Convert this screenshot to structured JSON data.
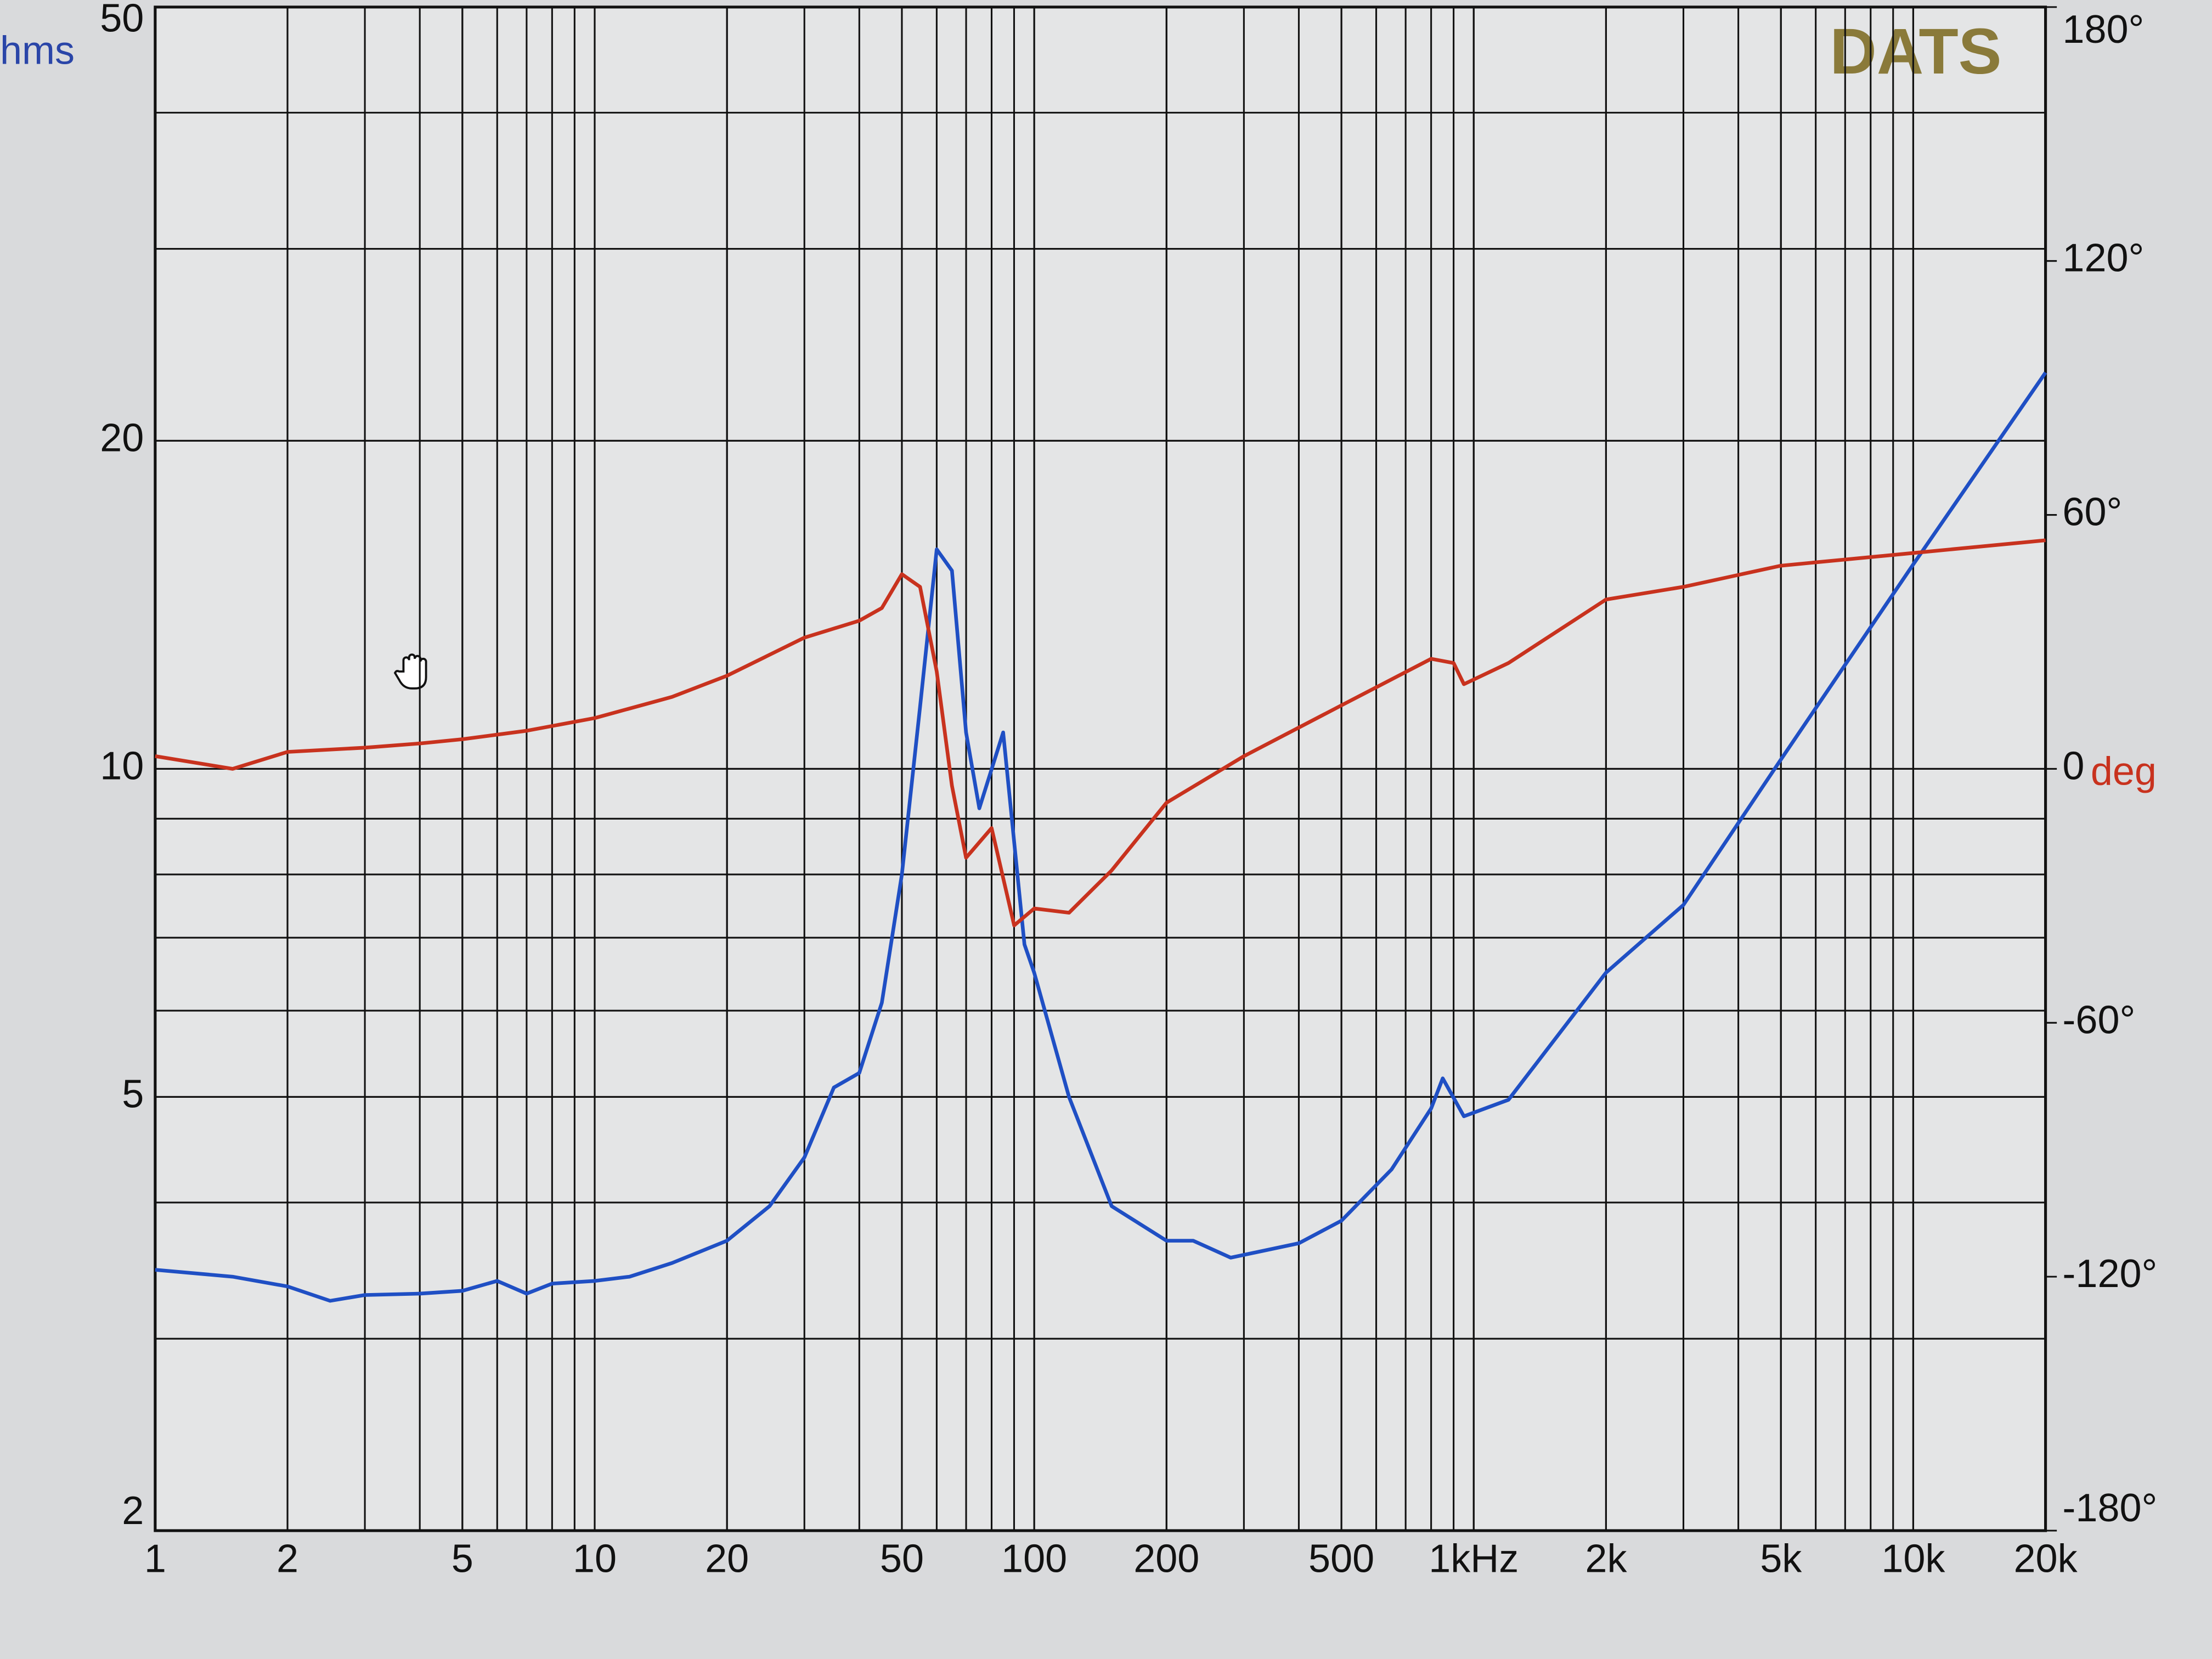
{
  "chart_data": {
    "type": "line",
    "watermark": "DATS",
    "ylabel": "hms",
    "y2label": "deg",
    "xscale": "log",
    "yscale": "log",
    "grid": true,
    "minor_grid": true,
    "xlim": [
      1,
      20000
    ],
    "ylim": [
      2,
      50
    ],
    "y2lim": [
      -180,
      180
    ],
    "xticks": [
      1,
      2,
      5,
      10,
      20,
      50,
      100,
      200,
      500,
      {
        "value": 1000,
        "label": "1kHz"
      },
      {
        "value": 2000,
        "label": "2k"
      },
      {
        "value": 5000,
        "label": "5k"
      },
      {
        "value": 10000,
        "label": "10k"
      },
      {
        "value": 20000,
        "label": "20k"
      }
    ],
    "yticks": [
      2,
      5,
      10,
      20,
      50
    ],
    "y2ticks": [
      {
        "value": 180,
        "label": "180°"
      },
      {
        "value": 120,
        "label": "120°"
      },
      {
        "value": 60,
        "label": "60°"
      },
      0,
      {
        "value": -60,
        "label": "-60°"
      },
      {
        "value": -120,
        "label": "-120°"
      },
      {
        "value": -180,
        "label": "-180°"
      }
    ],
    "series": [
      {
        "color": "#1f4fc4",
        "x": [
          1,
          1.5,
          2,
          2.5,
          3,
          4,
          5,
          6,
          7,
          8,
          10,
          12,
          15,
          20,
          25,
          30,
          35,
          40,
          45,
          50,
          55,
          60,
          65,
          70,
          75,
          85,
          95,
          100,
          120,
          150,
          200,
          230,
          280,
          400,
          500,
          650,
          800,
          850,
          950,
          1200,
          2000,
          3000,
          5000,
          10000,
          20000
        ],
        "values": [
          3.47,
          3.42,
          3.35,
          3.25,
          3.29,
          3.3,
          3.32,
          3.39,
          3.3,
          3.37,
          3.39,
          3.42,
          3.52,
          3.69,
          3.97,
          4.4,
          5.1,
          5.26,
          6.1,
          8.0,
          11.4,
          15.9,
          15.2,
          10.8,
          9.2,
          10.8,
          6.9,
          6.5,
          5.0,
          3.97,
          3.69,
          3.69,
          3.56,
          3.67,
          3.85,
          4.29,
          4.88,
          5.2,
          4.8,
          4.97,
          6.5,
          7.5,
          10.2,
          15.4,
          23.1
        ]
      },
      {
        "color": "#c8321e",
        "axis": "y2",
        "x": [
          1,
          1.5,
          2,
          3,
          4,
          5,
          7,
          10,
          15,
          20,
          30,
          40,
          45,
          50,
          55,
          60,
          65,
          70,
          80,
          90,
          100,
          120,
          150,
          200,
          300,
          500,
          800,
          900,
          950,
          1200,
          2000,
          3000,
          5000,
          10000,
          20000
        ],
        "values": [
          3,
          0,
          4,
          5,
          6,
          7,
          9,
          12,
          17,
          22,
          31,
          35,
          38,
          46,
          43,
          23,
          -4,
          -21,
          -14,
          -37,
          -33,
          -34,
          -24,
          -8,
          3,
          15,
          26,
          25,
          20,
          25,
          40,
          43,
          48,
          51,
          54
        ]
      }
    ]
  }
}
